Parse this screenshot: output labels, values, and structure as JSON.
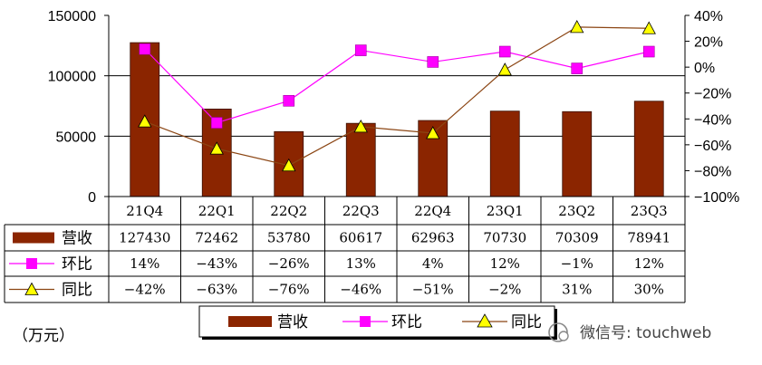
{
  "chart_data": {
    "type": "bar",
    "title": "",
    "categories": [
      "21Q4",
      "22Q1",
      "22Q2",
      "22Q3",
      "22Q4",
      "23Q1",
      "23Q2",
      "23Q3"
    ],
    "series": [
      {
        "name": "营收",
        "type": "bar",
        "axis": "left",
        "color": "#8B2500",
        "values": [
          127430,
          72462,
          53780,
          60617,
          62963,
          70730,
          70309,
          78941
        ],
        "labels": [
          "127430",
          "72462",
          "53780",
          "60617",
          "62963",
          "70730",
          "70309",
          "78941"
        ]
      },
      {
        "name": "环比",
        "type": "line",
        "axis": "right",
        "color": "#FF00FF",
        "marker": "square",
        "values": [
          14,
          -43,
          -26,
          13,
          4,
          12,
          -1,
          12
        ],
        "labels": [
          "14%",
          "-43%",
          "-26%",
          "13%",
          "4%",
          "12%",
          "-1%",
          "12%"
        ]
      },
      {
        "name": "同比",
        "type": "line",
        "axis": "right",
        "color": "#8B4513",
        "marker": "triangle",
        "marker_color": "#FFFF00",
        "values": [
          -42,
          -63,
          -76,
          -46,
          -51,
          -2,
          31,
          30
        ],
        "labels": [
          "-42%",
          "-63%",
          "-76%",
          "-46%",
          "-51%",
          "-2%",
          "31%",
          "30%"
        ]
      }
    ],
    "y_left": {
      "range": [
        0,
        150000
      ],
      "ticks": [
        "0",
        "50000",
        "100000",
        "150000"
      ]
    },
    "y_right": {
      "range": [
        -100,
        40
      ],
      "unit": "%",
      "ticks": [
        "-100%",
        "-80%",
        "-60%",
        "-40%",
        "-20%",
        "0%",
        "20%",
        "40%"
      ]
    },
    "grid": true,
    "legend_position": "bottom",
    "unit_label": "（万元）"
  },
  "watermark": "微信号: touchweb"
}
